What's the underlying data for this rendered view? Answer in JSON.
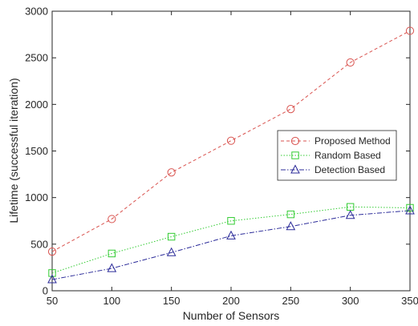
{
  "chart_data": {
    "type": "line",
    "title": "",
    "xlabel": "Number of Sensors",
    "ylabel": "Lifetime (successful iteration)",
    "x": [
      50,
      100,
      150,
      200,
      250,
      300,
      350
    ],
    "xlim": [
      50,
      350
    ],
    "ylim": [
      0,
      3000
    ],
    "xticks": [
      50,
      100,
      150,
      200,
      250,
      300,
      350
    ],
    "yticks": [
      0,
      500,
      1000,
      1500,
      2000,
      2500,
      3000
    ],
    "grid": false,
    "legend_position": "right",
    "series": [
      {
        "name": "Proposed Method",
        "values": [
          420,
          770,
          1270,
          1610,
          1950,
          2450,
          2790
        ],
        "color": "#d9534f",
        "line_style": "dashed",
        "marker": "circle"
      },
      {
        "name": "Random Based",
        "values": [
          190,
          400,
          580,
          750,
          820,
          900,
          890
        ],
        "color": "#33cc33",
        "line_style": "dotted",
        "marker": "square"
      },
      {
        "name": "Detection Based",
        "values": [
          120,
          240,
          410,
          590,
          690,
          810,
          860
        ],
        "color": "#2b2b99",
        "line_style": "dashdot",
        "marker": "triangle"
      }
    ]
  }
}
